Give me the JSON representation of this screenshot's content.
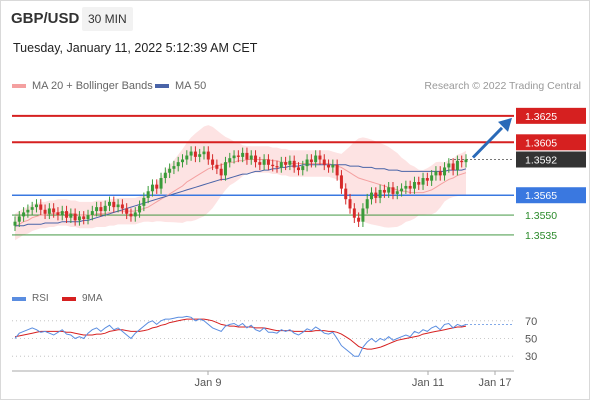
{
  "header": {
    "pair": "GBP/USD",
    "interval": "30 MIN",
    "datetime": "Tuesday, January 11, 2022 5:12:39 AM CET"
  },
  "legend": {
    "bollinger": "MA 20 + Bollinger Bands",
    "ma50": "MA 50",
    "copyright": "Research © 2022 Trading Central",
    "rsi": "RSI",
    "rsi_ma": "9MA"
  },
  "colors": {
    "bullish": "#3a9b3a",
    "bearish": "#d62a2a",
    "resistance": "#d62020",
    "support": "#3a78e0",
    "target": "#2a8a2a",
    "current": "#333333",
    "band_fill": "#fde3e3",
    "ma20": "#f4a0a0",
    "ma50": "#4a64a8",
    "arrow": "#2a6ab8",
    "rsi": "#5a8de0",
    "rsi_ma": "#d62020"
  },
  "chart_data": {
    "type": "candlestick",
    "title": "GBP/USD",
    "interval": "30 MIN",
    "ylim": [
      1.351,
      1.364
    ],
    "x_ticks": [
      "Jan 9",
      "Jan 11",
      "Jan 17"
    ],
    "price_levels": [
      {
        "label": "1.3625",
        "value": 1.3625,
        "kind": "resistance"
      },
      {
        "label": "1.3605",
        "value": 1.3605,
        "kind": "resistance"
      },
      {
        "label": "1.3592",
        "value": 1.3592,
        "kind": "current"
      },
      {
        "label": "1.3565",
        "value": 1.3565,
        "kind": "support"
      },
      {
        "label": "1.3550",
        "value": 1.355,
        "kind": "target"
      },
      {
        "label": "1.3535",
        "value": 1.3535,
        "kind": "target"
      }
    ],
    "closes": [
      1.3545,
      1.3549,
      1.3552,
      1.3554,
      1.3556,
      1.3558,
      1.3554,
      1.3551,
      1.3555,
      1.3552,
      1.355,
      1.3553,
      1.3548,
      1.3551,
      1.3546,
      1.3549,
      1.3547,
      1.355,
      1.3553,
      1.3556,
      1.3553,
      1.3557,
      1.356,
      1.3556,
      1.3558,
      1.3555,
      1.3551,
      1.3549,
      1.3552,
      1.3557,
      1.3563,
      1.3568,
      1.3573,
      1.357,
      1.3578,
      1.3582,
      1.3585,
      1.3587,
      1.359,
      1.3592,
      1.3595,
      1.3598,
      1.3594,
      1.3596,
      1.3598,
      1.3592,
      1.3588,
      1.3585,
      1.358,
      1.359,
      1.3593,
      1.3595,
      1.3594,
      1.3597,
      1.3592,
      1.3595,
      1.359,
      1.3588,
      1.3592,
      1.3588,
      1.3587,
      1.3586,
      1.359,
      1.3588,
      1.3591,
      1.3586,
      1.3584,
      1.3587,
      1.3592,
      1.359,
      1.3595,
      1.3592,
      1.3588,
      1.3586,
      1.3588,
      1.358,
      1.357,
      1.3562,
      1.3555,
      1.3548,
      1.3545,
      1.3555,
      1.3562,
      1.3567,
      1.3563,
      1.3569,
      1.3567,
      1.3571,
      1.3566,
      1.3568,
      1.357,
      1.3572,
      1.357,
      1.3575,
      1.3573,
      1.3578,
      1.3576,
      1.358,
      1.3583,
      1.358,
      1.3586,
      1.3589,
      1.3584,
      1.3591,
      1.359,
      1.3592
    ],
    "ma20": [
      1.3541,
      1.3543,
      1.3545,
      1.3546,
      1.3548,
      1.3549,
      1.355,
      1.355,
      1.3551,
      1.3551,
      1.3552,
      1.3552,
      1.3552,
      1.3551,
      1.3551,
      1.355,
      1.355,
      1.355,
      1.355,
      1.3551,
      1.3551,
      1.3551,
      1.3552,
      1.3552,
      1.3553,
      1.3553,
      1.3553,
      1.3553,
      1.3553,
      1.3554,
      1.3555,
      1.3556,
      1.3558,
      1.356,
      1.3562,
      1.3564,
      1.3566,
      1.3568,
      1.357,
      1.3572,
      1.3575,
      1.3577,
      1.3579,
      1.3581,
      1.3583,
      1.3585,
      1.3586,
      1.3587,
      1.3588,
      1.3589,
      1.359,
      1.359,
      1.3591,
      1.3591,
      1.3592,
      1.3592,
      1.3592,
      1.3592,
      1.3592,
      1.3592,
      1.3591,
      1.3591,
      1.359,
      1.359,
      1.3589,
      1.3589,
      1.3589,
      1.3589,
      1.3589,
      1.3589,
      1.3589,
      1.3589,
      1.3589,
      1.3589,
      1.3588,
      1.3587,
      1.3586,
      1.3584,
      1.3582,
      1.358,
      1.3578,
      1.3577,
      1.3576,
      1.3575,
      1.3574,
      1.3573,
      1.3572,
      1.3571,
      1.357,
      1.3569,
      1.3568,
      1.3568,
      1.3567,
      1.3567,
      1.3567,
      1.3567,
      1.3568,
      1.3569,
      1.3571,
      1.3573,
      1.3575,
      1.3577,
      1.3578,
      1.358,
      1.3581,
      1.3582
    ],
    "ma50": [
      1.3542,
      1.3542,
      1.3542,
      1.3543,
      1.3543,
      1.3543,
      1.3543,
      1.3544,
      1.3544,
      1.3544,
      1.3544,
      1.3545,
      1.3545,
      1.3545,
      1.3545,
      1.3545,
      1.3546,
      1.3546,
      1.3547,
      1.3548,
      1.3549,
      1.355,
      1.3551,
      1.3552,
      1.3553,
      1.3554,
      1.3555,
      1.3556,
      1.3557,
      1.3558,
      1.3559,
      1.356,
      1.3561,
      1.3562,
      1.3563,
      1.3564,
      1.3565,
      1.3566,
      1.3567,
      1.3568,
      1.3569,
      1.357,
      1.3571,
      1.3572,
      1.3573,
      1.3574,
      1.3575,
      1.3576,
      1.3577,
      1.3577,
      1.3578,
      1.3579,
      1.358,
      1.3581,
      1.3581,
      1.3582,
      1.3583,
      1.3583,
      1.3584,
      1.3584,
      1.3585,
      1.3585,
      1.3586,
      1.3586,
      1.3587,
      1.3587,
      1.3587,
      1.3588,
      1.3588,
      1.3588,
      1.3588,
      1.3588,
      1.3588,
      1.3588,
      1.3588,
      1.3588,
      1.3588,
      1.3588,
      1.3587,
      1.3587,
      1.3587,
      1.3586,
      1.3586,
      1.3586,
      1.3585,
      1.3585,
      1.3585,
      1.3584,
      1.3584,
      1.3584,
      1.3583,
      1.3583,
      1.3583,
      1.3583,
      1.3583,
      1.3583,
      1.3583,
      1.3583,
      1.3583,
      1.3583,
      1.3583,
      1.3584,
      1.3584,
      1.3584,
      1.3584,
      1.3585
    ],
    "rsi_yticks": [
      70,
      50,
      30
    ],
    "rsi_ylim": [
      20,
      80
    ],
    "rsi": [
      50,
      56,
      58,
      60,
      62,
      60,
      57,
      58,
      56,
      54,
      57,
      60,
      55,
      54,
      50,
      52,
      50,
      56,
      60,
      62,
      58,
      62,
      65,
      60,
      62,
      58,
      54,
      50,
      56,
      60,
      64,
      68,
      70,
      66,
      70,
      72,
      72,
      73,
      74,
      74,
      75,
      74,
      70,
      72,
      70,
      66,
      62,
      60,
      58,
      64,
      66,
      67,
      64,
      67,
      62,
      65,
      60,
      58,
      62,
      57,
      57,
      56,
      60,
      58,
      60,
      56,
      54,
      57,
      61,
      59,
      63,
      60,
      56,
      55,
      57,
      50,
      42,
      38,
      34,
      30,
      30,
      40,
      46,
      50,
      46,
      50,
      48,
      52,
      48,
      50,
      52,
      54,
      52,
      58,
      56,
      60,
      58,
      62,
      64,
      60,
      66,
      67,
      62,
      66,
      64,
      66
    ],
    "rsi_ma": [
      52,
      53,
      54,
      55,
      56,
      57,
      58,
      58,
      58,
      58,
      58,
      58,
      57,
      57,
      56,
      55,
      54,
      54,
      54,
      55,
      55,
      56,
      58,
      59,
      60,
      60,
      59,
      58,
      58,
      58,
      59,
      60,
      62,
      63,
      65,
      66,
      68,
      69,
      70,
      71,
      72,
      72,
      72,
      72,
      72,
      71,
      70,
      68,
      66,
      65,
      64,
      64,
      63,
      63,
      63,
      63,
      62,
      62,
      62,
      61,
      60,
      59,
      59,
      59,
      59,
      58,
      58,
      58,
      58,
      58,
      59,
      59,
      59,
      58,
      58,
      57,
      55,
      52,
      49,
      45,
      41,
      39,
      38,
      38,
      39,
      40,
      42,
      44,
      46,
      48,
      49,
      50,
      51,
      52,
      53,
      55,
      56,
      57,
      58,
      59,
      60,
      61,
      62,
      63,
      63,
      64
    ]
  }
}
